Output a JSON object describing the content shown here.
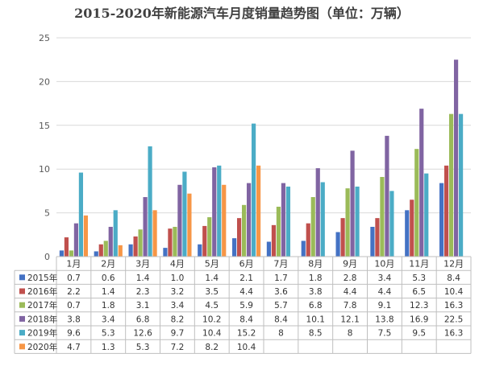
{
  "chart_data": {
    "type": "bar",
    "title": "2015-2020年新能源汽车月度销量趋势图（单位：万辆）",
    "categories": [
      "1月",
      "2月",
      "3月",
      "4月",
      "5月",
      "6月",
      "7月",
      "8月",
      "9月",
      "10月",
      "11月",
      "12月"
    ],
    "ylim": [
      0,
      25
    ],
    "yticks": [
      0,
      5,
      10,
      15,
      20,
      25
    ],
    "grid": true,
    "legend": "data-table-left",
    "series": [
      {
        "name": "2015年",
        "color": "#4472c4",
        "values": [
          0.7,
          0.6,
          1.4,
          1.0,
          1.4,
          2.1,
          1.7,
          1.8,
          2.8,
          3.4,
          5.3,
          8.4
        ],
        "labels": [
          "0.7",
          "0.6",
          "1.4",
          "1.0",
          "1.4",
          "2.1",
          "1.7",
          "1.8",
          "2.8",
          "3.4",
          "5.3",
          "8.4"
        ]
      },
      {
        "name": "2016年",
        "color": "#c0504d",
        "values": [
          2.2,
          1.4,
          2.3,
          3.2,
          3.5,
          4.4,
          3.6,
          3.8,
          4.4,
          4.4,
          6.5,
          10.4
        ],
        "labels": [
          "2.2",
          "1.4",
          "2.3",
          "3.2",
          "3.5",
          "4.4",
          "3.6",
          "3.8",
          "4.4",
          "4.4",
          "6.5",
          "10.4"
        ]
      },
      {
        "name": "2017年",
        "color": "#9bbb59",
        "values": [
          0.7,
          1.8,
          3.1,
          3.4,
          4.5,
          5.9,
          5.7,
          6.8,
          7.8,
          9.1,
          12.3,
          16.3
        ],
        "labels": [
          "0.7",
          "1.8",
          "3.1",
          "3.4",
          "4.5",
          "5.9",
          "5.7",
          "6.8",
          "7.8",
          "9.1",
          "12.3",
          "16.3"
        ]
      },
      {
        "name": "2018年",
        "color": "#8064a2",
        "values": [
          3.8,
          3.4,
          6.8,
          8.2,
          10.2,
          8.4,
          8.4,
          10.1,
          12.1,
          13.8,
          16.9,
          22.5
        ],
        "labels": [
          "3.8",
          "3.4",
          "6.8",
          "8.2",
          "10.2",
          "8.4",
          "8.4",
          "10.1",
          "12.1",
          "13.8",
          "16.9",
          "22.5"
        ]
      },
      {
        "name": "2019年",
        "color": "#4bacc6",
        "values": [
          9.6,
          5.3,
          12.6,
          9.7,
          10.4,
          15.2,
          8,
          8.5,
          8,
          7.5,
          9.5,
          16.3
        ],
        "labels": [
          "9.6",
          "5.3",
          "12.6",
          "9.7",
          "10.4",
          "15.2",
          "8",
          "8.5",
          "8",
          "7.5",
          "9.5",
          "16.3"
        ]
      },
      {
        "name": "2020年",
        "color": "#f79646",
        "values": [
          4.7,
          1.3,
          5.3,
          7.2,
          8.2,
          10.4,
          null,
          null,
          null,
          null,
          null,
          null
        ],
        "labels": [
          "4.7",
          "1.3",
          "5.3",
          "7.2",
          "8.2",
          "10.4",
          "",
          "",
          "",
          "",
          "",
          ""
        ]
      }
    ]
  }
}
